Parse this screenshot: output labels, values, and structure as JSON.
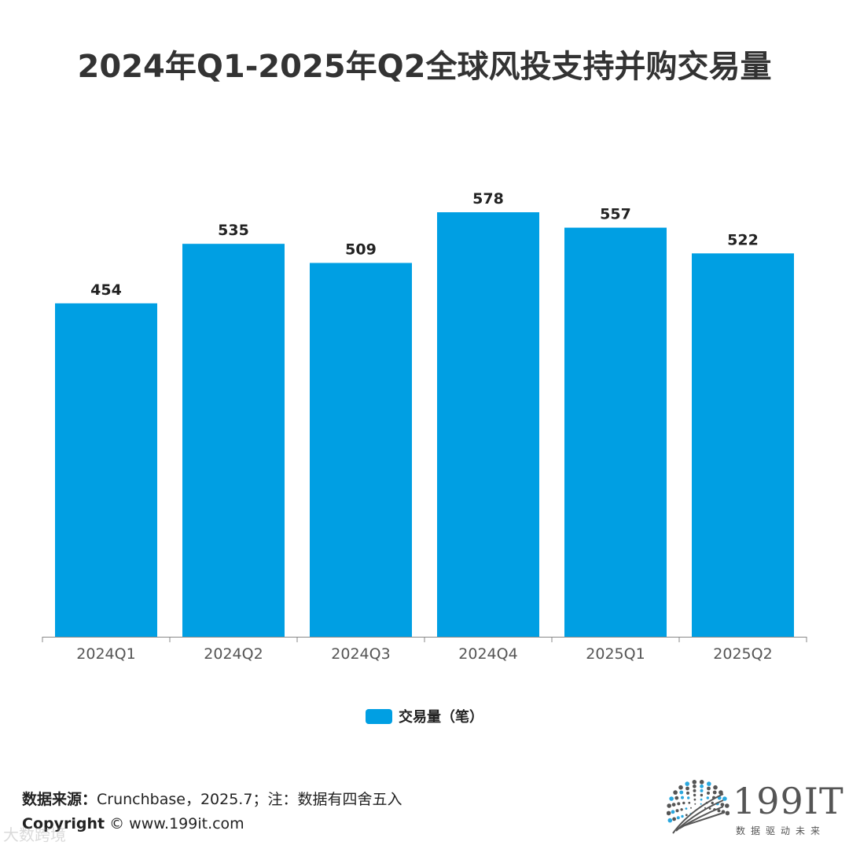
{
  "title": "2024年Q1-2025年Q2全球风投支持并购交易量",
  "chart_data": {
    "type": "bar",
    "title": "2024年Q1-2025年Q2全球风投支持并购交易量",
    "categories": [
      "2024Q1",
      "2024Q2",
      "2024Q3",
      "2024Q4",
      "2025Q1",
      "2025Q2"
    ],
    "series": [
      {
        "name": "交易量（笔）",
        "values": [
          454,
          535,
          509,
          578,
          557,
          522
        ],
        "color": "#009FE3"
      }
    ],
    "data_labels": [
      "454",
      "535",
      "509",
      "578",
      "557",
      "522"
    ],
    "xlabel": "",
    "ylabel": "",
    "ylim": [
      0,
      590
    ],
    "grid": false,
    "legend_position": "bottom"
  },
  "footer": {
    "source_label": "数据来源：",
    "source_text": "Crunchbase，2025.7；注：数据有四舍五入",
    "copyright_label": "Copyright",
    "copyright_text": " ©  www.199it.com",
    "watermark": "大数跨境"
  },
  "logo": {
    "text": "199IT",
    "subtitle": "数据驱动未来",
    "icon": "dot-sphere-icon",
    "color": "#555555",
    "accent": "#2AA7DE"
  }
}
